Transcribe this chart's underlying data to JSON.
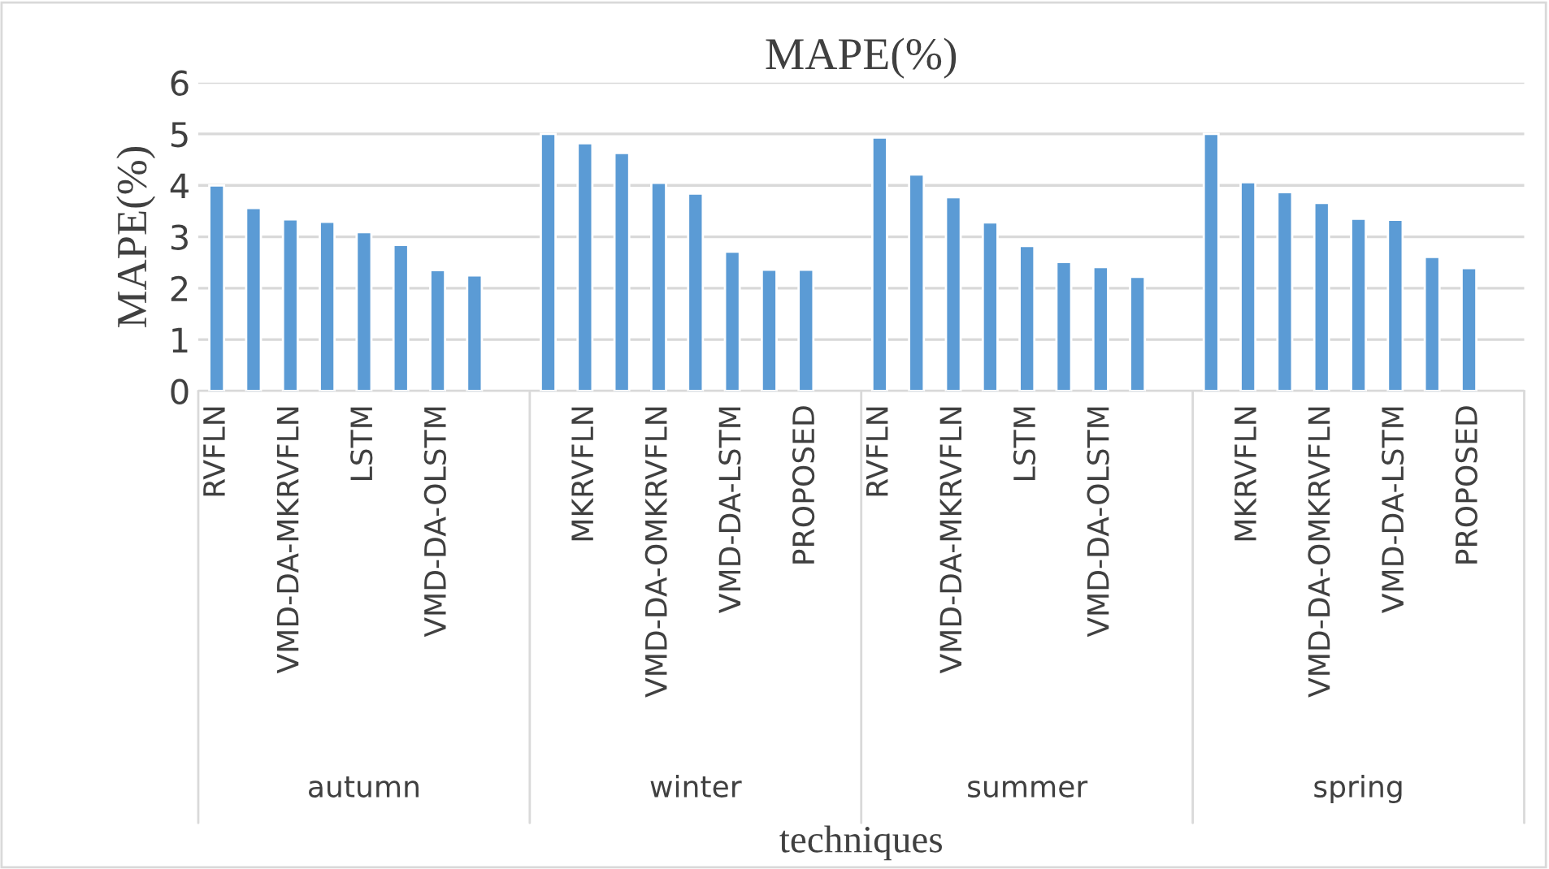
{
  "chart_data": {
    "type": "bar",
    "title": "MAPE(%)",
    "ylabel": "MAPE(%)",
    "xlabel": "techniques",
    "categories": [
      "RVFLN",
      null,
      "VMD-DA-MKRVFLN",
      null,
      "LSTM",
      null,
      "VMD-DA-OLSTM",
      null,
      null,
      null,
      "MKRVFLN",
      null,
      "VMD-DA-OMKRVFLN",
      null,
      "VMD-DA-LSTM",
      null,
      "PROPOSED",
      null,
      "RVFLN",
      null,
      "VMD-DA-MKRVFLN",
      null,
      "LSTM",
      null,
      "VMD-DA-OLSTM",
      null,
      null,
      null,
      "MKRVFLN",
      null,
      "VMD-DA-OMKRVFLN",
      null,
      "VMD-DA-LSTM",
      null,
      "PROPOSED",
      null
    ],
    "values": [
      4.0,
      3.56,
      3.34,
      3.29,
      3.09,
      2.84,
      2.35,
      2.25,
      null,
      5.0,
      4.82,
      4.63,
      4.05,
      3.84,
      2.71,
      2.36,
      2.36,
      null,
      4.93,
      4.21,
      3.77,
      3.28,
      2.82,
      2.51,
      2.41,
      2.22,
      null,
      5.0,
      4.06,
      3.87,
      3.66,
      3.35,
      3.33,
      2.61,
      2.39,
      null
    ],
    "color": "#5b9bd5",
    "ylim": [
      0,
      6
    ],
    "yticks": [
      0,
      1,
      2,
      3,
      4,
      5,
      6
    ],
    "grid": "y",
    "annotations": [
      "autumn",
      "winter",
      "summer",
      "spring"
    ]
  }
}
